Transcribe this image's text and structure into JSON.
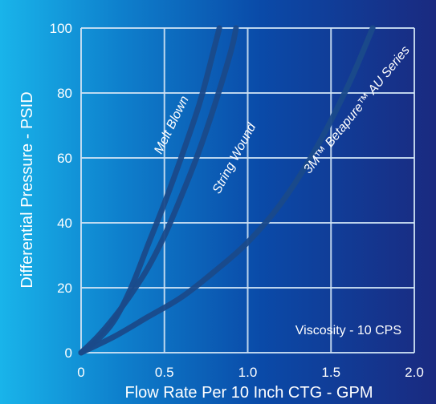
{
  "chart_data": {
    "type": "line",
    "title": "",
    "xlabel": "Flow Rate Per 10 Inch CTG - GPM",
    "ylabel": "Differential Pressure - PSID",
    "xlim": [
      0,
      2.0
    ],
    "ylim": [
      0,
      100
    ],
    "x_ticks": [
      "0",
      "0.5",
      "1.0",
      "1.5",
      "2.0"
    ],
    "y_ticks": [
      "0",
      "20",
      "40",
      "60",
      "80",
      "100"
    ],
    "grid": true,
    "annotation": "Viscosity - 10 CPS",
    "series": [
      {
        "name": "Melt Blown",
        "x": [
          0,
          0.1,
          0.2,
          0.3,
          0.4,
          0.5,
          0.6,
          0.7,
          0.75,
          0.8,
          0.83
        ],
        "y": [
          0,
          4,
          10,
          20,
          33,
          46,
          60,
          75,
          84,
          94,
          100
        ]
      },
      {
        "name": "String Wound",
        "x": [
          0,
          0.1,
          0.2,
          0.3,
          0.4,
          0.5,
          0.6,
          0.7,
          0.8,
          0.9,
          0.93
        ],
        "y": [
          0,
          5,
          11,
          18,
          26,
          36,
          48,
          61,
          76,
          93,
          100
        ]
      },
      {
        "name": "3M™ Betapure™ AU Series",
        "x": [
          0,
          0.2,
          0.4,
          0.6,
          0.8,
          1.0,
          1.2,
          1.4,
          1.6,
          1.75
        ],
        "y": [
          0,
          5,
          11,
          17,
          25,
          34,
          46,
          62,
          82,
          100
        ]
      }
    ],
    "colors": {
      "line": "#1a4a8a",
      "grid": "#cfe3f5",
      "text": "#ffffff"
    }
  }
}
